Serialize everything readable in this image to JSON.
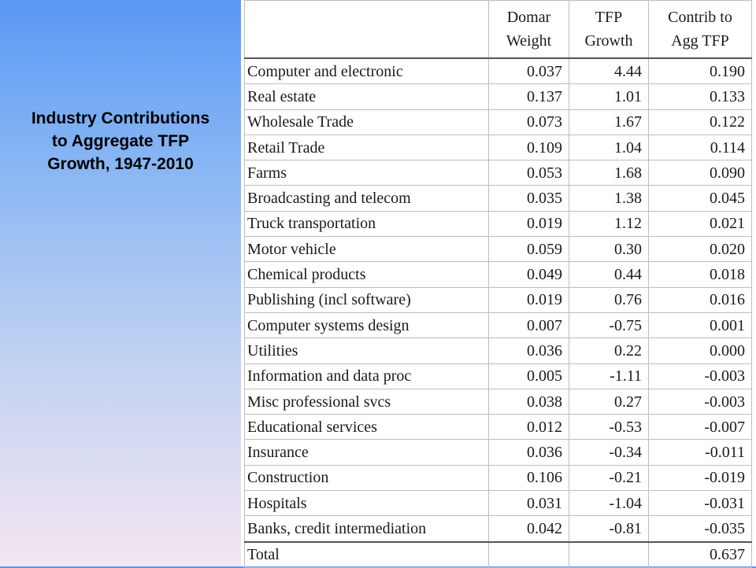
{
  "title": {
    "line1": "Industry Contributions",
    "line2": "to Aggregate TFP",
    "line3": "Growth, 1947-2010"
  },
  "table": {
    "headers": {
      "industry": "",
      "domar": [
        "Domar",
        "Weight"
      ],
      "tfp": [
        "TFP",
        "Growth"
      ],
      "contrib": [
        "Contrib to",
        "Agg TFP"
      ]
    },
    "rows": [
      {
        "industry": "Computer and electronic",
        "domar": "0.037",
        "tfp": "4.44",
        "contrib": "0.190"
      },
      {
        "industry": "Real estate",
        "domar": "0.137",
        "tfp": "1.01",
        "contrib": "0.133"
      },
      {
        "industry": "Wholesale Trade",
        "domar": "0.073",
        "tfp": "1.67",
        "contrib": "0.122"
      },
      {
        "industry": "Retail Trade",
        "domar": "0.109",
        "tfp": "1.04",
        "contrib": "0.114"
      },
      {
        "industry": "Farms",
        "domar": "0.053",
        "tfp": "1.68",
        "contrib": "0.090"
      },
      {
        "industry": "Broadcasting and telecom",
        "domar": "0.035",
        "tfp": "1.38",
        "contrib": "0.045"
      },
      {
        "industry": "Truck transportation",
        "domar": "0.019",
        "tfp": "1.12",
        "contrib": "0.021"
      },
      {
        "industry": "Motor vehicle",
        "domar": "0.059",
        "tfp": "0.30",
        "contrib": "0.020"
      },
      {
        "industry": "Chemical products",
        "domar": "0.049",
        "tfp": "0.44",
        "contrib": "0.018"
      },
      {
        "industry": "Publishing (incl software)",
        "domar": "0.019",
        "tfp": "0.76",
        "contrib": "0.016"
      },
      {
        "industry": "Computer systems design",
        "domar": "0.007",
        "tfp": "-0.75",
        "contrib": "0.001"
      },
      {
        "industry": "Utilities",
        "domar": "0.036",
        "tfp": "0.22",
        "contrib": "0.000"
      },
      {
        "industry": "Information and data proc",
        "domar": "0.005",
        "tfp": "-1.11",
        "contrib": "-0.003"
      },
      {
        "industry": "Misc professional svcs",
        "domar": "0.038",
        "tfp": "0.27",
        "contrib": "-0.003"
      },
      {
        "industry": "Educational services",
        "domar": "0.012",
        "tfp": "-0.53",
        "contrib": "-0.007"
      },
      {
        "industry": "Insurance",
        "domar": "0.036",
        "tfp": "-0.34",
        "contrib": "-0.011"
      },
      {
        "industry": "Construction",
        "domar": "0.106",
        "tfp": "-0.21",
        "contrib": "-0.019"
      },
      {
        "industry": "Hospitals",
        "domar": "0.031",
        "tfp": "-1.04",
        "contrib": "-0.031"
      },
      {
        "industry": "Banks, credit intermediation",
        "domar": "0.042",
        "tfp": "-0.81",
        "contrib": "-0.035"
      }
    ],
    "total": {
      "label": "Total",
      "domar": "",
      "tfp": "",
      "contrib": "0.637"
    }
  }
}
